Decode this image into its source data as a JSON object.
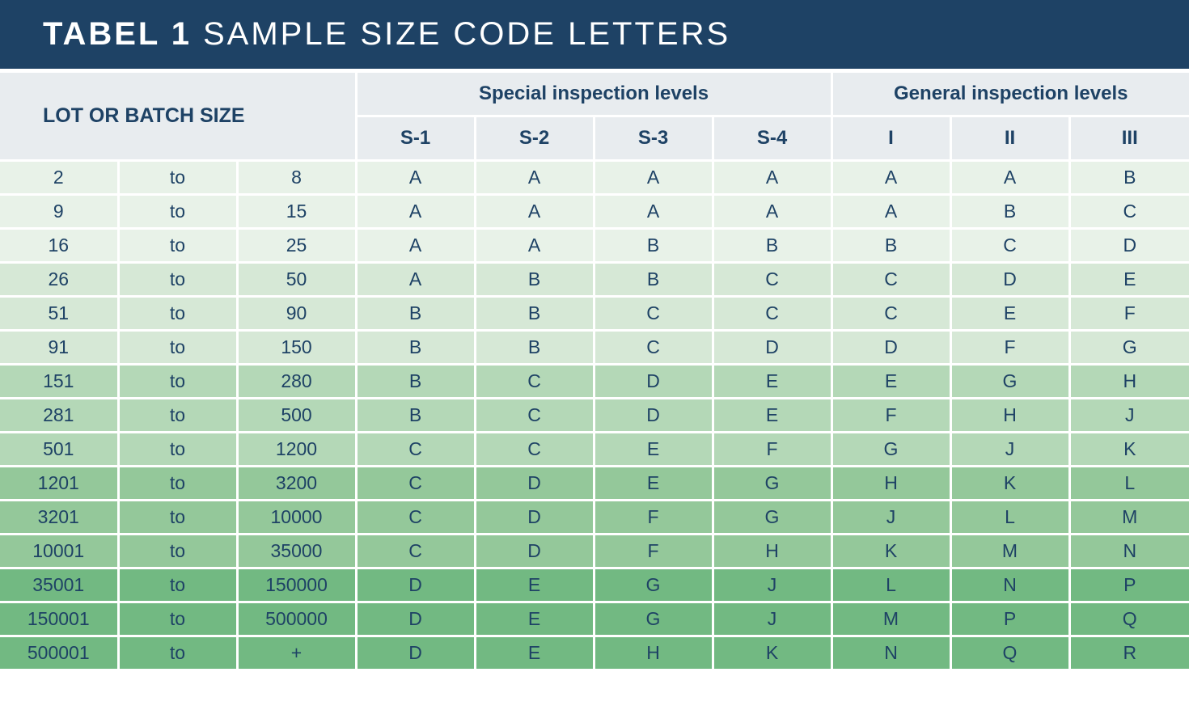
{
  "title": {
    "bold": "TABEL 1",
    "rest": "SAMPLE SIZE CODE LETTERS"
  },
  "header": {
    "lot_label": "LOT OR BATCH SIZE",
    "special_label": "Special inspection levels",
    "general_label": "General inspection levels",
    "columns": [
      "S-1",
      "S-2",
      "S-3",
      "S-4",
      "I",
      "II",
      "III"
    ]
  },
  "colors": {
    "title_bg": "#1e4265",
    "text": "#1e4265",
    "header_bg": "#e8ecef",
    "band_0": "#e8f2e8",
    "band_1": "#d6e8d6",
    "band_2": "#b4d8b7",
    "band_3": "#94c89a",
    "band_4": "#72b982"
  },
  "rows": [
    {
      "from": "2",
      "sep": "to",
      "to": "8",
      "codes": [
        "A",
        "A",
        "A",
        "A",
        "A",
        "A",
        "B"
      ]
    },
    {
      "from": "9",
      "sep": "to",
      "to": "15",
      "codes": [
        "A",
        "A",
        "A",
        "A",
        "A",
        "B",
        "C"
      ]
    },
    {
      "from": "16",
      "sep": "to",
      "to": "25",
      "codes": [
        "A",
        "A",
        "B",
        "B",
        "B",
        "C",
        "D"
      ]
    },
    {
      "from": "26",
      "sep": "to",
      "to": "50",
      "codes": [
        "A",
        "B",
        "B",
        "C",
        "C",
        "D",
        "E"
      ]
    },
    {
      "from": "51",
      "sep": "to",
      "to": "90",
      "codes": [
        "B",
        "B",
        "C",
        "C",
        "C",
        "E",
        "F"
      ]
    },
    {
      "from": "91",
      "sep": "to",
      "to": "150",
      "codes": [
        "B",
        "B",
        "C",
        "D",
        "D",
        "F",
        "G"
      ]
    },
    {
      "from": "151",
      "sep": "to",
      "to": "280",
      "codes": [
        "B",
        "C",
        "D",
        "E",
        "E",
        "G",
        "H"
      ]
    },
    {
      "from": "281",
      "sep": "to",
      "to": "500",
      "codes": [
        "B",
        "C",
        "D",
        "E",
        "F",
        "H",
        "J"
      ]
    },
    {
      "from": "501",
      "sep": "to",
      "to": "1200",
      "codes": [
        "C",
        "C",
        "E",
        "F",
        "G",
        "J",
        "K"
      ]
    },
    {
      "from": "1201",
      "sep": "to",
      "to": "3200",
      "codes": [
        "C",
        "D",
        "E",
        "G",
        "H",
        "K",
        "L"
      ]
    },
    {
      "from": "3201",
      "sep": "to",
      "to": "10000",
      "codes": [
        "C",
        "D",
        "F",
        "G",
        "J",
        "L",
        "M"
      ]
    },
    {
      "from": "10001",
      "sep": "to",
      "to": "35000",
      "codes": [
        "C",
        "D",
        "F",
        "H",
        "K",
        "M",
        "N"
      ]
    },
    {
      "from": "35001",
      "sep": "to",
      "to": "150000",
      "codes": [
        "D",
        "E",
        "G",
        "J",
        "L",
        "N",
        "P"
      ]
    },
    {
      "from": "150001",
      "sep": "to",
      "to": "500000",
      "codes": [
        "D",
        "E",
        "G",
        "J",
        "M",
        "P",
        "Q"
      ]
    },
    {
      "from": "500001",
      "sep": "to",
      "to": "+",
      "codes": [
        "D",
        "E",
        "H",
        "K",
        "N",
        "Q",
        "R"
      ]
    }
  ]
}
